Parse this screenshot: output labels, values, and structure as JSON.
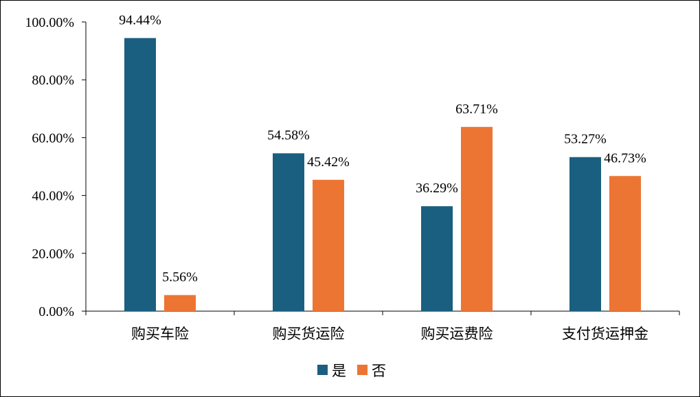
{
  "colors": {
    "series_yes": "#1a5f7f",
    "series_no": "#ec7533",
    "axis": "#000000"
  },
  "chart_data": {
    "type": "bar",
    "title": "",
    "xlabel": "",
    "ylabel": "",
    "ylim": [
      0,
      100
    ],
    "y_ticks": [
      0,
      20,
      40,
      60,
      80,
      100
    ],
    "y_tick_labels": [
      "0.00%",
      "20.00%",
      "40.00%",
      "60.00%",
      "80.00%",
      "100.00%"
    ],
    "grid": false,
    "legend_position": "bottom",
    "categories": [
      "购买车险",
      "购买货运险",
      "购买运费险",
      "支付货运押金"
    ],
    "series": [
      {
        "name": "是",
        "values": [
          94.44,
          54.58,
          36.29,
          53.27
        ],
        "labels": [
          "94.44%",
          "54.58%",
          "36.29%",
          "53.27%"
        ]
      },
      {
        "name": "否",
        "values": [
          5.56,
          45.42,
          63.71,
          46.73
        ],
        "labels": [
          "5.56%",
          "45.42%",
          "63.71%",
          "46.73%"
        ]
      }
    ]
  }
}
